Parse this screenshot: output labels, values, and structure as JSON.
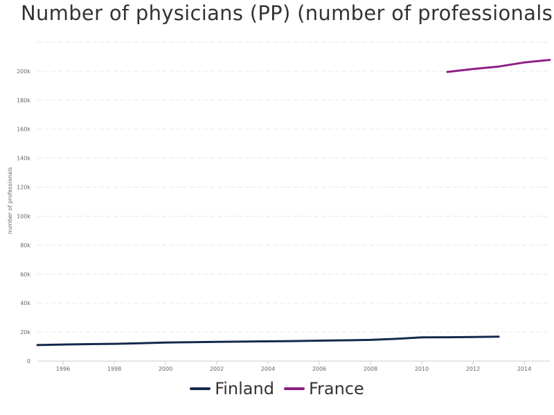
{
  "title": "Number of physicians (PP) (number of professionals)",
  "chart_data": {
    "type": "line",
    "title": "Number of physicians (PP) (number of professionals)",
    "xlabel": "",
    "ylabel": "number of professionals",
    "xlim": [
      1995,
      2015
    ],
    "ylim": [
      0,
      220000
    ],
    "x_ticks": [
      1996,
      1998,
      2000,
      2002,
      2004,
      2006,
      2008,
      2010,
      2012,
      2014
    ],
    "y_ticks": [
      0,
      20000,
      40000,
      60000,
      80000,
      100000,
      120000,
      140000,
      160000,
      180000,
      200000
    ],
    "y_tick_labels": [
      "0",
      "20k",
      "40k",
      "60k",
      "80k",
      "100k",
      "120k",
      "140k",
      "160k",
      "180k",
      "200k"
    ],
    "grid": true,
    "legend_position": "bottom-center",
    "series": [
      {
        "name": "Finland",
        "color": "#14284b",
        "x": [
          1995,
          1996,
          1997,
          1998,
          1999,
          2000,
          2001,
          2002,
          2003,
          2004,
          2005,
          2006,
          2007,
          2008,
          2009,
          2010,
          2011,
          2012,
          2013
        ],
        "y": [
          11000,
          11400,
          11700,
          11900,
          12300,
          12800,
          13000,
          13200,
          13400,
          13600,
          13800,
          14100,
          14300,
          14600,
          15300,
          16300,
          16400,
          16600,
          16800
        ]
      },
      {
        "name": "France",
        "color": "#8e2085",
        "x": [
          2011,
          2012,
          2013,
          2014,
          2015
        ],
        "y": [
          199500,
          201500,
          203200,
          206000,
          207800
        ]
      }
    ]
  }
}
